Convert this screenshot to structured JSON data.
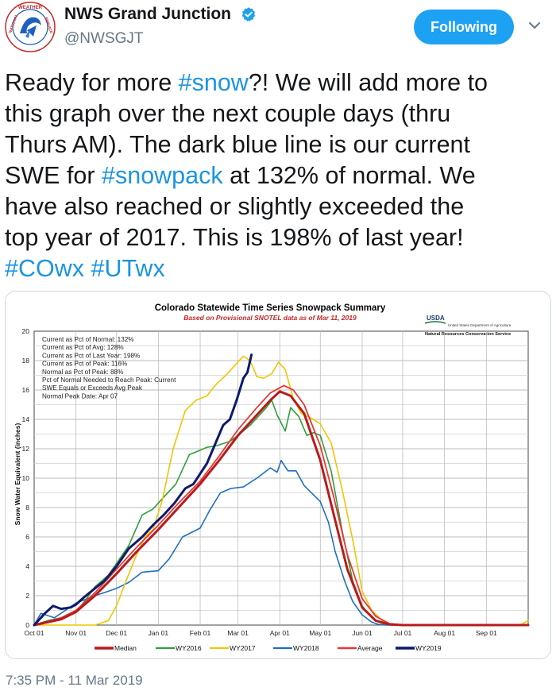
{
  "header": {
    "display_name": "NWS Grand Junction",
    "handle": "@NWSGJT",
    "follow_label": "Following",
    "avatar_icon": "nws-logo-icon",
    "verified_icon": "verified-badge-icon",
    "menu_icon": "chevron-down-icon",
    "avatar_text_top": "WEATHER",
    "avatar_text_left": "NATIONAL",
    "avatar_text_right": "SERVICE"
  },
  "tweet": {
    "line1_a": "Ready for more ",
    "line1_tag": "#snow",
    "line1_b": "?! We will add more to",
    "line2": "this graph over the next couple days (thru",
    "line3": "Thurs AM). The dark blue line is our current",
    "line4_a": "SWE for ",
    "line4_tag": "#snowpack",
    "line4_b": " at 132% of normal. We",
    "line5": "have also reached or slightly exceeded the",
    "line6": "top year of 2017. This is 198% of last year!",
    "line7_tag1": "#COwx",
    "line7_tag2": "#UTwx"
  },
  "timestamp": "7:35 PM - 11 Mar 2019",
  "colors": {
    "accent": "#1da1f2",
    "link": "#1b95e0",
    "median": "#b71c1c",
    "wy2016": "#2e9e3a",
    "wy2017": "#f2c500",
    "wy2018": "#1f6fc0",
    "average": "#e53935",
    "wy2019": "#0d1a6b"
  },
  "usda": {
    "logo_text": "USDA",
    "dept": "United States Department of Agriculture",
    "service": "Natural Resources Conservation Service"
  },
  "chart_data": {
    "type": "line",
    "title": "Colorado Statewide Time Series Snowpack Summary",
    "subtitle": "Based on Provisional SNOTEL data as of Mar 11, 2019",
    "ylabel": "Snow Water Equivalent (inches)",
    "xlabel": "",
    "ylim": [
      0,
      20
    ],
    "yticks": [
      "0",
      "2",
      "4",
      "6",
      "8",
      "10",
      "12",
      "14",
      "16",
      "18",
      "20"
    ],
    "xticks": [
      "Oct 01",
      "Nov 01",
      "Dec 01",
      "Jan 01",
      "Feb 01",
      "Mar 01",
      "Apr 01",
      "May 01",
      "Jun 01",
      "Jul 01",
      "Aug 01",
      "Sep 01"
    ],
    "xtick_days": [
      0,
      31,
      61,
      92,
      123,
      151,
      182,
      212,
      243,
      273,
      304,
      335
    ],
    "xlim_days": [
      0,
      366
    ],
    "grid": true,
    "legend_position": "bottom",
    "annotations": [
      "Current  as Pct of Normal: 132%",
      "Current  as Pct of Avg: 128%",
      "Current  as Pct of Last Year: 198%",
      "Current  as Pct of Peak: 116%",
      "Normal  as Pct of Peak: 88%",
      "Pct of Normal Needed to Reach Peak: Current",
      "SWE Equals or Exceeds Avg Peak",
      "Normal Peak Date: Apr 07"
    ],
    "series": [
      {
        "name": "Median",
        "color": "#b71c1c",
        "width": 3,
        "x": [
          0,
          20,
          31,
          45,
          61,
          76,
          92,
          107,
          123,
          137,
          151,
          165,
          175,
          182,
          190,
          200,
          212,
          222,
          232,
          243,
          253,
          263,
          273,
          290,
          366
        ],
        "y": [
          0,
          0.4,
          0.9,
          2.0,
          3.5,
          5.0,
          6.5,
          8.0,
          9.6,
          11.2,
          12.9,
          14.3,
          15.3,
          15.9,
          15.6,
          14.4,
          11.2,
          7.5,
          3.8,
          1.2,
          0.3,
          0.05,
          0,
          0,
          0
        ]
      },
      {
        "name": "WY2016",
        "color": "#2e9e3a",
        "width": 1.6,
        "x": [
          0,
          10,
          20,
          31,
          38,
          45,
          55,
          61,
          70,
          80,
          88,
          92,
          98,
          105,
          115,
          123,
          128,
          135,
          145,
          151,
          160,
          166,
          172,
          176,
          180,
          186,
          190,
          196,
          202,
          207,
          212,
          220,
          228,
          236,
          243,
          250,
          258,
          266,
          280,
          366
        ],
        "y": [
          0,
          0.3,
          0.5,
          0.9,
          1.7,
          2.6,
          3.4,
          4.2,
          5.4,
          7.5,
          7.9,
          8.3,
          8.9,
          9.6,
          11.6,
          11.9,
          12.1,
          12.2,
          12.5,
          12.9,
          13.6,
          14.2,
          14.8,
          15.3,
          14.3,
          13.2,
          14.8,
          14.2,
          12.9,
          13.1,
          12.9,
          10.5,
          6.5,
          3.0,
          1.3,
          0.5,
          0.1,
          0,
          0,
          0
        ]
      },
      {
        "name": "WY2017",
        "color": "#f2c500",
        "width": 1.6,
        "x": [
          0,
          31,
          45,
          55,
          61,
          68,
          75,
          82,
          88,
          95,
          103,
          112,
          120,
          128,
          135,
          142,
          150,
          155,
          160,
          165,
          170,
          176,
          181,
          186,
          192,
          198,
          205,
          212,
          220,
          228,
          236,
          243,
          250,
          258,
          265,
          275,
          360,
          366
        ],
        "y": [
          0,
          0,
          0,
          0.3,
          1.3,
          3.0,
          4.6,
          6.0,
          6.5,
          8.5,
          12.0,
          14.6,
          15.3,
          15.6,
          16.4,
          17.0,
          17.8,
          18.3,
          18.0,
          16.9,
          16.8,
          17.1,
          17.9,
          17.4,
          15.4,
          14.4,
          14.1,
          13.7,
          12.4,
          9.3,
          5.8,
          2.3,
          1.0,
          0.3,
          0.05,
          0,
          0,
          0.3
        ]
      },
      {
        "name": "WY2018",
        "color": "#1f6fc0",
        "width": 1.6,
        "x": [
          0,
          5,
          15,
          31,
          45,
          55,
          61,
          70,
          80,
          92,
          100,
          110,
          123,
          130,
          138,
          146,
          155,
          165,
          175,
          180,
          183,
          188,
          194,
          200,
          212,
          218,
          223,
          230,
          236,
          243,
          250,
          255,
          260,
          270,
          366
        ],
        "y": [
          0,
          0.8,
          0.5,
          1.5,
          2.0,
          2.3,
          2.5,
          2.9,
          3.6,
          3.7,
          4.5,
          6.0,
          6.6,
          7.8,
          9.0,
          9.3,
          9.4,
          10.0,
          10.7,
          10.4,
          11.2,
          10.5,
          10.5,
          9.5,
          8.4,
          7.0,
          5.0,
          3.0,
          1.6,
          0.7,
          0.2,
          0.05,
          0,
          0,
          0
        ]
      },
      {
        "name": "Average",
        "color": "#e53935",
        "width": 1.8,
        "x": [
          0,
          20,
          31,
          45,
          61,
          76,
          92,
          107,
          123,
          137,
          151,
          165,
          175,
          185,
          192,
          200,
          212,
          222,
          232,
          243,
          253,
          263,
          275,
          290,
          366
        ],
        "y": [
          0,
          0.5,
          1.0,
          2.2,
          3.8,
          5.3,
          6.8,
          8.3,
          9.8,
          11.5,
          13.3,
          14.8,
          15.8,
          16.3,
          16.0,
          15.0,
          12.2,
          8.7,
          4.8,
          1.8,
          0.6,
          0.1,
          0,
          0,
          0
        ]
      },
      {
        "name": "WY2019",
        "color": "#0d1a6b",
        "width": 3,
        "x": [
          0,
          8,
          14,
          20,
          27,
          31,
          37,
          45,
          52,
          61,
          70,
          80,
          88,
          96,
          104,
          112,
          118,
          123,
          128,
          134,
          140,
          145,
          150,
          155,
          158,
          161
        ],
        "y": [
          0,
          0.8,
          1.3,
          1.1,
          1.2,
          1.4,
          1.9,
          2.5,
          3.0,
          4.0,
          5.2,
          6.0,
          6.8,
          7.5,
          8.3,
          9.3,
          9.6,
          10.3,
          11.0,
          12.3,
          13.6,
          14.0,
          15.3,
          16.8,
          17.2,
          18.4
        ]
      }
    ]
  }
}
